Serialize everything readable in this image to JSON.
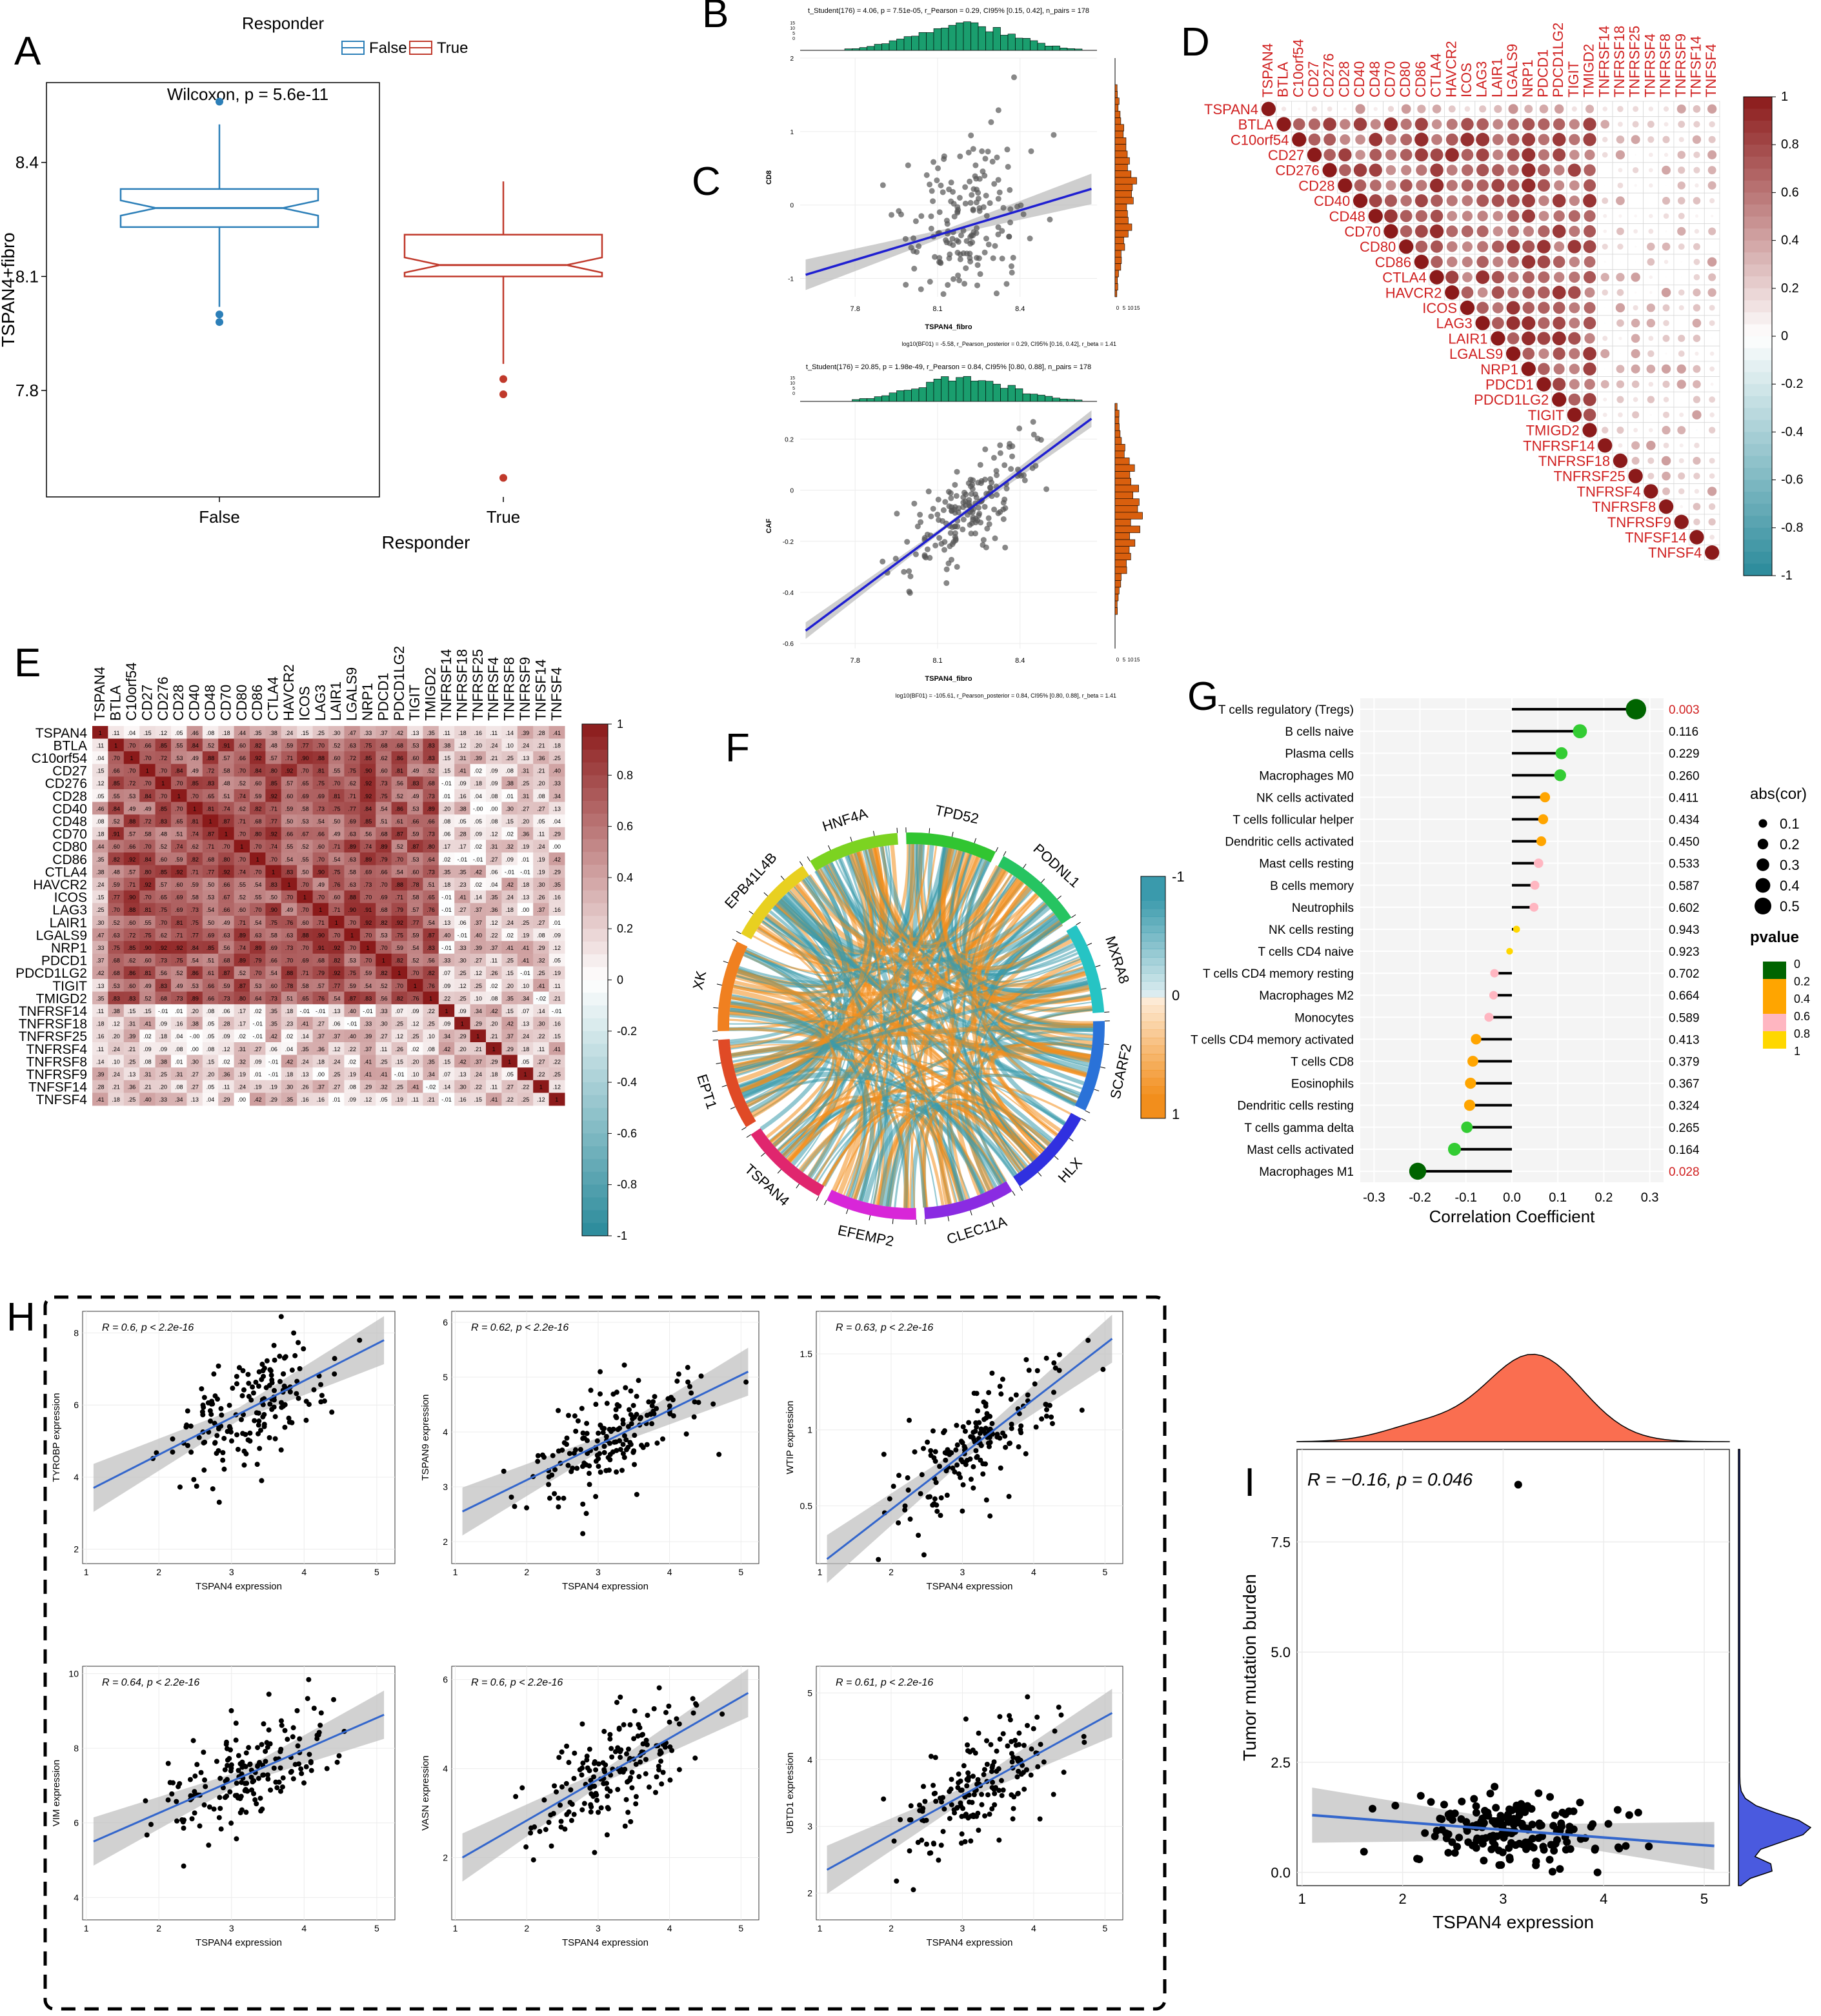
{
  "panel_labels": [
    "A",
    "B",
    "C",
    "D",
    "E",
    "F",
    "G",
    "H",
    "I"
  ],
  "colors": {
    "false": "#2c7fb8",
    "true": "#c0392b",
    "green": "#1a9e6e",
    "orange": "#d95f0e",
    "blue": "#1f1fd1",
    "corr_pos": "#8b1a1a",
    "corr_neg": "#2a8a9a",
    "chord_orange": "#f28e1c",
    "chord_teal": "#3a9aac"
  },
  "chart_data": [
    {
      "id": "A",
      "type": "boxplot",
      "legend_title": "Responder",
      "legend": [
        "False",
        "True"
      ],
      "annotation": "Wilcoxon, p = 5.6e-11",
      "xlabel": "Responder",
      "ylabel": "TSPAN4+fibro",
      "ylim": [
        7.52,
        8.61
      ],
      "yticks": [
        "7.8",
        "8.1",
        "8.4"
      ],
      "ytick_values": [
        7.8,
        8.1,
        8.4
      ],
      "categories": [
        "False",
        "True"
      ],
      "boxes": [
        {
          "name": "False",
          "q1": 8.23,
          "median": 8.28,
          "q3": 8.33,
          "whislo": 8.02,
          "whishi": 8.5,
          "notch": 0.02,
          "outliers": [
            8.56,
            8.0,
            7.98
          ]
        },
        {
          "name": "True",
          "q1": 8.1,
          "median": 8.13,
          "q3": 8.21,
          "whislo": 7.87,
          "whishi": 8.35,
          "notch": 0.02,
          "outliers": [
            7.83,
            7.79,
            7.57
          ]
        }
      ]
    },
    {
      "id": "B",
      "type": "scatter",
      "subtitle": "t_Student(176) = 4.06, p = 7.51e-05, r_Pearson = 0.29, CI95% [0.15, 0.42], n_pairs = 178",
      "caption": "log10(BF01) = -5.58, r_Pearson_posterior = 0.29, CI95% [0.16, 0.42], r_beta = 1.41",
      "xlabel": "TSPAN4_fibro",
      "ylabel": "CD8",
      "xlim": [
        7.6,
        8.68
      ],
      "ylim": [
        -1.25,
        2.0
      ],
      "xticks": [
        7.8,
        8.1,
        8.4
      ],
      "yticks": [
        -1,
        0,
        1,
        2
      ],
      "fit": {
        "x0": 7.62,
        "y0": -0.95,
        "x1": 8.66,
        "y1": 0.22
      },
      "hist_y_ticks": [
        "0",
        "5",
        "10",
        "15"
      ]
    },
    {
      "id": "C",
      "type": "scatter",
      "subtitle": "t_Student(176) = 20.85, p = 1.98e-49, r_Pearson = 0.84, CI95% [0.80, 0.88], n_pairs = 178",
      "caption": "log10(BF01) = -105.61, r_Pearson_posterior = 0.84, CI95% [0.80, 0.88], r_beta = 1.41",
      "xlabel": "TSPAN4_fibro",
      "ylabel": "CAF",
      "xlim": [
        7.6,
        8.68
      ],
      "ylim": [
        -0.62,
        0.34
      ],
      "xticks": [
        7.8,
        8.1,
        8.4
      ],
      "yticks": [
        -0.6,
        -0.4,
        -0.2,
        0.0,
        0.2
      ],
      "fit": {
        "x0": 7.62,
        "y0": -0.55,
        "x1": 8.66,
        "y1": 0.28
      },
      "hist_y_ticks": [
        "0",
        "5",
        "10",
        "15"
      ]
    },
    {
      "id": "D",
      "type": "corrplot",
      "genes": [
        "TSPAN4",
        "BTLA",
        "C10orf54",
        "CD27",
        "CD276",
        "CD28",
        "CD40",
        "CD48",
        "CD70",
        "CD80",
        "CD86",
        "CTLA4",
        "HAVCR2",
        "ICOS",
        "LAG3",
        "LAIR1",
        "LGALS9",
        "NRP1",
        "PDCD1",
        "PDCD1LG2",
        "TIGIT",
        "TMIGD2",
        "TNFRSF14",
        "TNFRSF18",
        "TNFRSF25",
        "TNFRSF4",
        "TNFRSF8",
        "TNFRSF9",
        "TNFSF14",
        "TNFSF4"
      ],
      "colorbar_ticks": [
        "1",
        "0.8",
        "0.6",
        "0.4",
        "0.2",
        "0",
        "-0.2",
        "-0.4",
        "-0.6",
        "-0.8",
        "-1"
      ]
    },
    {
      "id": "E",
      "type": "heatmap",
      "genes": [
        "TSPAN4",
        "BTLA",
        "C10orf54",
        "CD27",
        "CD276",
        "CD28",
        "CD40",
        "CD48",
        "CD70",
        "CD80",
        "CD86",
        "CTLA4",
        "HAVCR2",
        "ICOS",
        "LAG3",
        "LAIR1",
        "LGALS9",
        "NRP1",
        "PDCD1",
        "PDCD1LG2",
        "TIGIT",
        "TMIGD2",
        "TNFRSF14",
        "TNFRSF18",
        "TNFRSF25",
        "TNFRSF4",
        "TNFRSF8",
        "TNFRSF9",
        "TNFSF14",
        "TNFSF4"
      ],
      "colorbar_ticks": [
        "1",
        "0.8",
        "0.6",
        "0.4",
        "0.2",
        "0",
        "-0.2",
        "-0.4",
        "-0.6",
        "-0.8",
        "-1"
      ]
    },
    {
      "id": "F",
      "type": "chord",
      "sectors": [
        "HNF4A",
        "TPD52",
        "PODNL1",
        "MXRA8",
        "SCARF2",
        "HLX",
        "CLEC11A",
        "EFEMP2",
        "TSPAN4",
        "EPT1",
        "XK",
        "EPB41L4B"
      ],
      "sector_colors": [
        "#7cd321",
        "#31c531",
        "#26c461",
        "#26c4c4",
        "#2a72d8",
        "#3030e0",
        "#8a2be2",
        "#d826d8",
        "#e0266e",
        "#e04a26",
        "#f08020",
        "#e8d020"
      ],
      "legend_ticks": [
        "-1",
        "0",
        "1"
      ]
    },
    {
      "id": "G",
      "type": "lollipop",
      "xlabel": "Correlation Coefficient",
      "xlim": [
        -0.33,
        0.33
      ],
      "xticks": [
        "-0.3",
        "-0.2",
        "-0.1",
        "0.0",
        "0.1",
        "0.2",
        "0.3"
      ],
      "xtick_values": [
        -0.3,
        -0.2,
        -0.1,
        0.0,
        0.1,
        0.2,
        0.3
      ],
      "size_legend_title": "abs(cor)",
      "size_legend": [
        "0.1",
        "0.2",
        "0.3",
        "0.4",
        "0.5"
      ],
      "color_legend_title": "pvalue",
      "color_legend": [
        "0",
        "0.2",
        "0.4",
        "0.6",
        "0.8",
        "1"
      ],
      "categories": [
        "T cells regulatory (Tregs)",
        "B cells naive",
        "Plasma cells",
        "Macrophages M0",
        "NK cells activated",
        "T cells follicular helper",
        "Dendritic cells activated",
        "Mast cells resting",
        "B cells memory",
        "Neutrophils",
        "NK cells resting",
        "T cells CD4 naive",
        "T cells CD4 memory resting",
        "Macrophages M2",
        "Monocytes",
        "T cells CD4 memory activated",
        "T cells CD8",
        "Eosinophils",
        "Dendritic cells resting",
        "T cells gamma delta",
        "Mast cells activated",
        "Macrophages M1"
      ],
      "values": [
        0.27,
        0.148,
        0.108,
        0.105,
        0.072,
        0.068,
        0.064,
        0.058,
        0.05,
        0.048,
        0.01,
        -0.005,
        -0.038,
        -0.04,
        -0.05,
        -0.078,
        -0.085,
        -0.09,
        -0.092,
        -0.098,
        -0.125,
        -0.205
      ],
      "pvalues": [
        "0.003",
        "0.116",
        "0.229",
        "0.260",
        "0.411",
        "0.434",
        "0.450",
        "0.533",
        "0.587",
        "0.602",
        "0.943",
        "0.923",
        "0.702",
        "0.664",
        "0.589",
        "0.413",
        "0.379",
        "0.367",
        "0.324",
        "0.265",
        "0.164",
        "0.028"
      ]
    },
    {
      "id": "H",
      "type": "scatter_grid",
      "panels": [
        {
          "annotation": "R = 0.6, p < 2.2e-16",
          "ylabel": "TYROBP expression",
          "xlabel": "TSPAN4 expression",
          "ylim": [
            1.6,
            8.6
          ],
          "yticks": [
            2,
            4,
            6,
            8
          ],
          "fit": [
            1.1,
            3.7,
            5.1,
            7.8
          ]
        },
        {
          "annotation": "R = 0.62, p < 2.2e-16",
          "ylabel": "TSPAN9 expression",
          "xlabel": "TSPAN4 expression",
          "ylim": [
            1.6,
            6.2
          ],
          "yticks": [
            2,
            3,
            4,
            5,
            6
          ],
          "fit": [
            1.1,
            2.55,
            5.1,
            5.1
          ]
        },
        {
          "annotation": "R = 0.63, p < 2.2e-16",
          "ylabel": "WTIP expression",
          "xlabel": "TSPAN4 expression",
          "ylim": [
            0.12,
            1.78
          ],
          "yticks": [
            0.5,
            1.0,
            1.5
          ],
          "fit": [
            1.1,
            0.15,
            5.1,
            1.6
          ]
        },
        {
          "annotation": "R = 0.64, p < 2.2e-16",
          "ylabel": "VIM expression",
          "xlabel": "TSPAN4 expression",
          "ylim": [
            3.4,
            10.2
          ],
          "yticks": [
            4,
            6,
            8,
            10
          ],
          "fit": [
            1.1,
            5.5,
            5.1,
            8.9
          ]
        },
        {
          "annotation": "R = 0.6, p < 2.2e-16",
          "ylabel": "VASN expression",
          "xlabel": "TSPAN4 expression",
          "ylim": [
            0.6,
            6.3
          ],
          "yticks": [
            2,
            4,
            6
          ],
          "fit": [
            1.1,
            2.0,
            5.1,
            5.7
          ]
        },
        {
          "annotation": "R = 0.61, p < 2.2e-16",
          "ylabel": "UBTD1 expression",
          "xlabel": "TSPAN4 expression",
          "ylim": [
            1.6,
            5.4
          ],
          "yticks": [
            2,
            3,
            4,
            5
          ],
          "fit": [
            1.1,
            2.35,
            5.1,
            4.7
          ]
        }
      ],
      "xlim": [
        0.95,
        5.25
      ],
      "xticks": [
        1,
        2,
        3,
        4,
        5
      ]
    },
    {
      "id": "I",
      "type": "scatter",
      "annotation": "R = −0.16, p = 0.046",
      "xlabel": "TSPAN4 expression",
      "ylabel": "Tumor mutation burden",
      "xlim": [
        0.95,
        5.25
      ],
      "ylim": [
        -0.3,
        9.6
      ],
      "xticks": [
        "1",
        "2",
        "3",
        "4",
        "5"
      ],
      "xtick_values": [
        1,
        2,
        3,
        4,
        5
      ],
      "yticks": [
        "0.0",
        "2.5",
        "5.0",
        "7.5"
      ],
      "ytick_values": [
        0,
        2.5,
        5.0,
        7.5
      ],
      "fit": [
        1.1,
        1.3,
        5.1,
        0.6
      ]
    }
  ]
}
